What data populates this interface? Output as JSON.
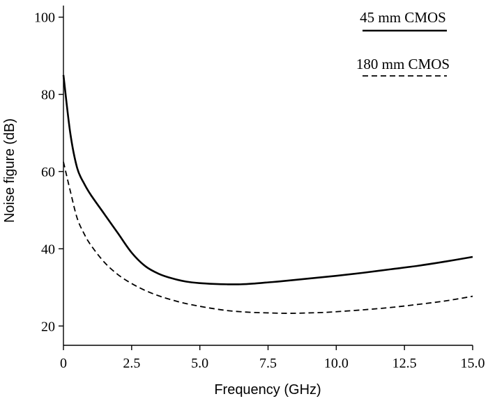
{
  "chart_data": {
    "type": "line",
    "title": "",
    "xlabel": "Frequency (GHz)",
    "ylabel": "Noise figure (dB)",
    "xlim": [
      0,
      15
    ],
    "ylim": [
      15,
      103
    ],
    "xticks": [
      0,
      2.5,
      5.0,
      7.5,
      10.0,
      12.5,
      15.0
    ],
    "xtick_labels": [
      "0",
      "2.5",
      "5.0",
      "7.5",
      "10.0",
      "12.5",
      "15.0"
    ],
    "yticks": [
      20,
      40,
      60,
      80,
      100
    ],
    "ytick_labels": [
      "20",
      "40",
      "60",
      "80",
      "100"
    ],
    "grid": false,
    "legend_position": "top-right",
    "series": [
      {
        "name": "45 mm CMOS",
        "style": "solid",
        "color": "#000000",
        "x": [
          0,
          0.25,
          0.5,
          0.75,
          1.0,
          1.5,
          2.0,
          2.5,
          3.0,
          3.5,
          4.0,
          4.5,
          5.0,
          5.5,
          6.0,
          6.5,
          7.0,
          7.5,
          8.0,
          9.0,
          10.0,
          11.0,
          12.0,
          13.0,
          14.0,
          15.0
        ],
        "y": [
          85,
          70,
          61,
          57,
          54,
          49,
          44,
          39,
          35.5,
          33.5,
          32.3,
          31.5,
          31.1,
          30.9,
          30.8,
          30.8,
          31.0,
          31.3,
          31.6,
          32.3,
          33.0,
          33.8,
          34.7,
          35.6,
          36.7,
          37.9
        ]
      },
      {
        "name": "180 mm CMOS",
        "style": "dashed",
        "color": "#000000",
        "x": [
          0,
          0.25,
          0.5,
          0.75,
          1.0,
          1.5,
          2.0,
          2.5,
          3.0,
          3.5,
          4.0,
          4.5,
          5.0,
          5.5,
          6.0,
          6.5,
          7.0,
          7.5,
          8.0,
          8.5,
          9.0,
          9.5,
          10.0,
          11.0,
          12.0,
          13.0,
          14.0,
          15.0
        ],
        "y": [
          62.5,
          55,
          48,
          44,
          41,
          36.5,
          33.3,
          31,
          29.2,
          27.8,
          26.7,
          25.8,
          25.1,
          24.5,
          24.0,
          23.7,
          23.5,
          23.4,
          23.3,
          23.3,
          23.4,
          23.5,
          23.7,
          24.2,
          24.8,
          25.6,
          26.5,
          27.7
        ]
      }
    ]
  }
}
